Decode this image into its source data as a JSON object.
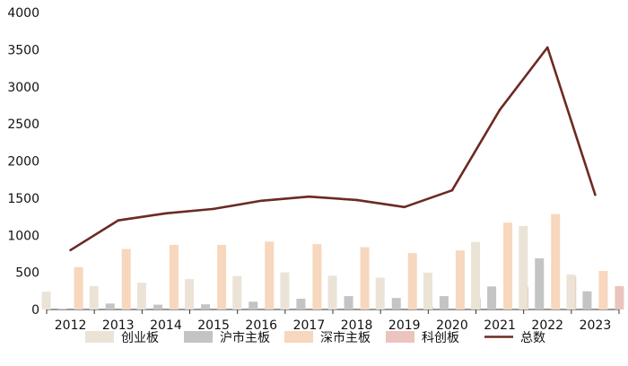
{
  "chart_data": {
    "type": "bar",
    "categories": [
      "2012",
      "2013",
      "2014",
      "2015",
      "2016",
      "2017",
      "2018",
      "2019",
      "2020",
      "2021",
      "2022",
      "2023"
    ],
    "ylim": [
      0,
      4000
    ],
    "y_ticks": [
      "0",
      "500",
      "1000",
      "1500",
      "2000",
      "2500",
      "3000",
      "3500",
      "4000"
    ],
    "grid": false,
    "legend_position": "bottom",
    "series": [
      {
        "name": "创业板",
        "type": "bar",
        "color": "#ebe3d6",
        "values": [
          240,
          315,
          360,
          410,
          450,
          500,
          455,
          430,
          495,
          910,
          1125,
          470
        ]
      },
      {
        "name": "沪市主板",
        "type": "bar",
        "color": "#c4c4c4",
        "values": [
          10,
          80,
          65,
          70,
          105,
          145,
          180,
          155,
          180,
          310,
          690,
          245
        ]
      },
      {
        "name": "深市主板",
        "type": "bar",
        "color": "#f7d7bd",
        "values": [
          570,
          815,
          870,
          870,
          915,
          880,
          840,
          760,
          795,
          1170,
          1285,
          520
        ]
      },
      {
        "name": "科创板",
        "type": "bar",
        "color": "#ebc4bd",
        "values": [
          0,
          0,
          0,
          0,
          0,
          0,
          0,
          40,
          150,
          305,
          445,
          315
        ]
      },
      {
        "name": "总数",
        "type": "line",
        "color": "#6b2a22",
        "values": [
          800,
          1200,
          1295,
          1355,
          1465,
          1520,
          1475,
          1380,
          1605,
          2690,
          3530,
          1545
        ]
      }
    ]
  }
}
